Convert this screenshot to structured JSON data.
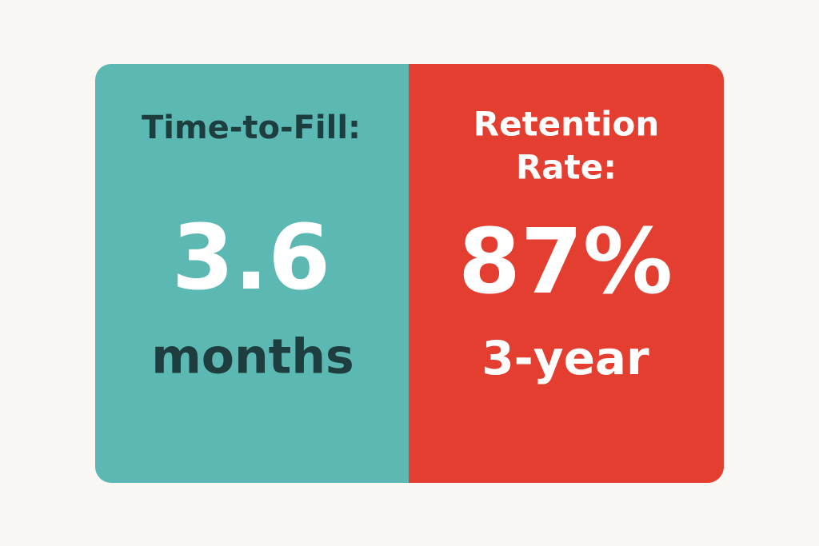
{
  "panels": [
    {
      "label": [
        "Time-to-Fill:"
      ],
      "value": "3.6",
      "unit": "months"
    },
    {
      "label": [
        "Retention",
        "Rate:"
      ],
      "value": "87%",
      "unit": "3-year"
    }
  ]
}
